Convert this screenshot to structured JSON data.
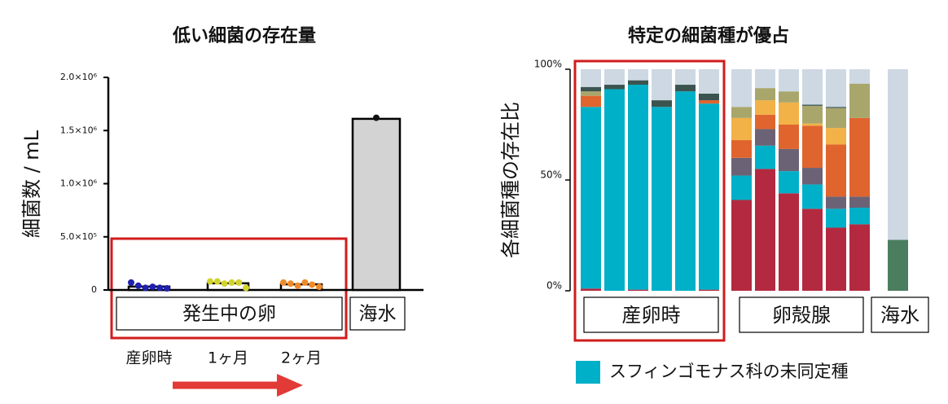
{
  "chart_data": [
    {
      "type": "bar",
      "title": "低い細菌の存在量",
      "y_label": "細菌数 / mL",
      "categories": [
        "産卵時",
        "1ヶ月",
        "2ヶ月",
        null
      ],
      "group_labels": [
        "発生中の卵",
        "海水"
      ],
      "values": [
        32000,
        63000,
        53000,
        1610000
      ],
      "colors": [
        "#1f1fb0",
        "#d2d230",
        "#ef8a2a",
        "#d3d3d3"
      ],
      "points": [
        [
          70000,
          40000,
          20000,
          30000,
          20000,
          15000
        ],
        [
          80000,
          80000,
          60000,
          70000,
          70000,
          20000
        ],
        [
          70000,
          60000,
          40000,
          70000,
          50000,
          30000
        ],
        [
          1620000
        ]
      ],
      "ylim": [
        0,
        2000000
      ],
      "yticks": [
        0,
        {
          "value": 500000,
          "label": "5.0×10⁵"
        },
        {
          "value": 1000000,
          "label": "1.0×10⁶"
        },
        {
          "value": 1500000,
          "label": "1.5×10⁶"
        },
        {
          "value": 2000000,
          "label": "2.0×10⁶"
        }
      ]
    },
    {
      "type": "stacked-bar",
      "title": "特定の細菌種が優占",
      "y_label": "各細菌種の存在比",
      "categories": [
        null,
        null,
        null,
        null,
        null,
        null,
        null,
        null,
        null,
        null,
        null,
        null,
        null
      ],
      "group_labels": [
        "産卵時",
        "卵殻腺",
        "海水"
      ],
      "ylim": [
        0,
        100
      ],
      "yticks": [
        {
          "value": 0,
          "label": "0%"
        },
        {
          "value": 50,
          "label": "50%"
        },
        {
          "value": 100,
          "label": "100%"
        }
      ],
      "series": [
        {
          "color": "#b32a40",
          "values": [
            1,
            0,
            0.5,
            0,
            0,
            0.5,
            41,
            55,
            44,
            37,
            28.5,
            30,
            0
          ]
        },
        {
          "name": "スフィンゴモナス科の未同定種",
          "color": "#00b0c8",
          "values": [
            82,
            91,
            92.5,
            83,
            90,
            84,
            11,
            10.5,
            10,
            11,
            8.5,
            7.5,
            0
          ]
        },
        {
          "color": "#6c6276",
          "values": [
            0,
            0,
            0,
            0,
            0,
            0,
            8,
            7.5,
            10,
            7.5,
            5.5,
            5,
            0
          ]
        },
        {
          "color": "#e0642e",
          "values": [
            5,
            0,
            0,
            0,
            0,
            1.5,
            8,
            6.5,
            11,
            19,
            23.5,
            35.5,
            0
          ]
        },
        {
          "color": "#f2b247",
          "values": [
            0,
            0,
            0,
            0,
            0,
            0,
            10,
            6.5,
            10,
            1,
            7.5,
            0,
            0
          ]
        },
        {
          "color": "#a9a66c",
          "values": [
            2,
            0,
            0,
            0,
            0,
            0,
            5,
            5.5,
            5,
            8,
            9,
            15.5,
            0
          ]
        },
        {
          "color": "#3b5450",
          "values": [
            2,
            2,
            2,
            3,
            3,
            3,
            0,
            0,
            0,
            0.5,
            0.5,
            0,
            0
          ]
        },
        {
          "color": "#4b7d5f",
          "values": [
            0,
            0,
            0,
            0,
            0,
            0,
            0,
            0,
            0,
            0,
            0,
            0,
            23
          ]
        },
        {
          "color": "#cdd8e3",
          "values": [
            8,
            7,
            5,
            14,
            7,
            11,
            17,
            8.5,
            10,
            16,
            17,
            6.5,
            77
          ]
        }
      ]
    }
  ]
}
